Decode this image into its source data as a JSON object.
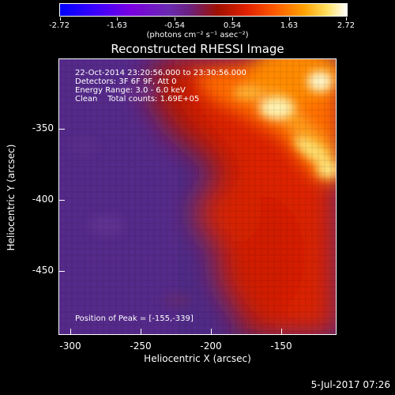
{
  "colorbar": {
    "tick_labels": [
      "-2.72",
      "-1.63",
      "-0.54",
      "0.54",
      "1.63",
      "2.72"
    ],
    "units": "(photons cm⁻² s⁻¹ asec⁻²)"
  },
  "title": "Reconstructed RHESSI Image",
  "annotations": {
    "time": "22-Oct-2014 23:20:56.000 to 23:30:56.000",
    "detectors": "Detectors: 3F 6F 9F, Att 0",
    "energy": "Energy Range: 3.0 - 6.0 keV",
    "clean": "Clean    Total counts: 1.69E+05",
    "peak": "Position of Peak = [-155,-339]"
  },
  "axes": {
    "xlabel": "Heliocentric X (arcsec)",
    "ylabel": "Heliocentric Y (arcsec)",
    "xticks": [
      "-300",
      "-250",
      "-200",
      "-150"
    ],
    "yticks": [
      "-350",
      "-400",
      "-450"
    ]
  },
  "footer_date": "5-Jul-2017 07:26",
  "colors": {
    "low": "#5a2a8a",
    "mid": "#d81a00",
    "high": "#fff8d0"
  }
}
